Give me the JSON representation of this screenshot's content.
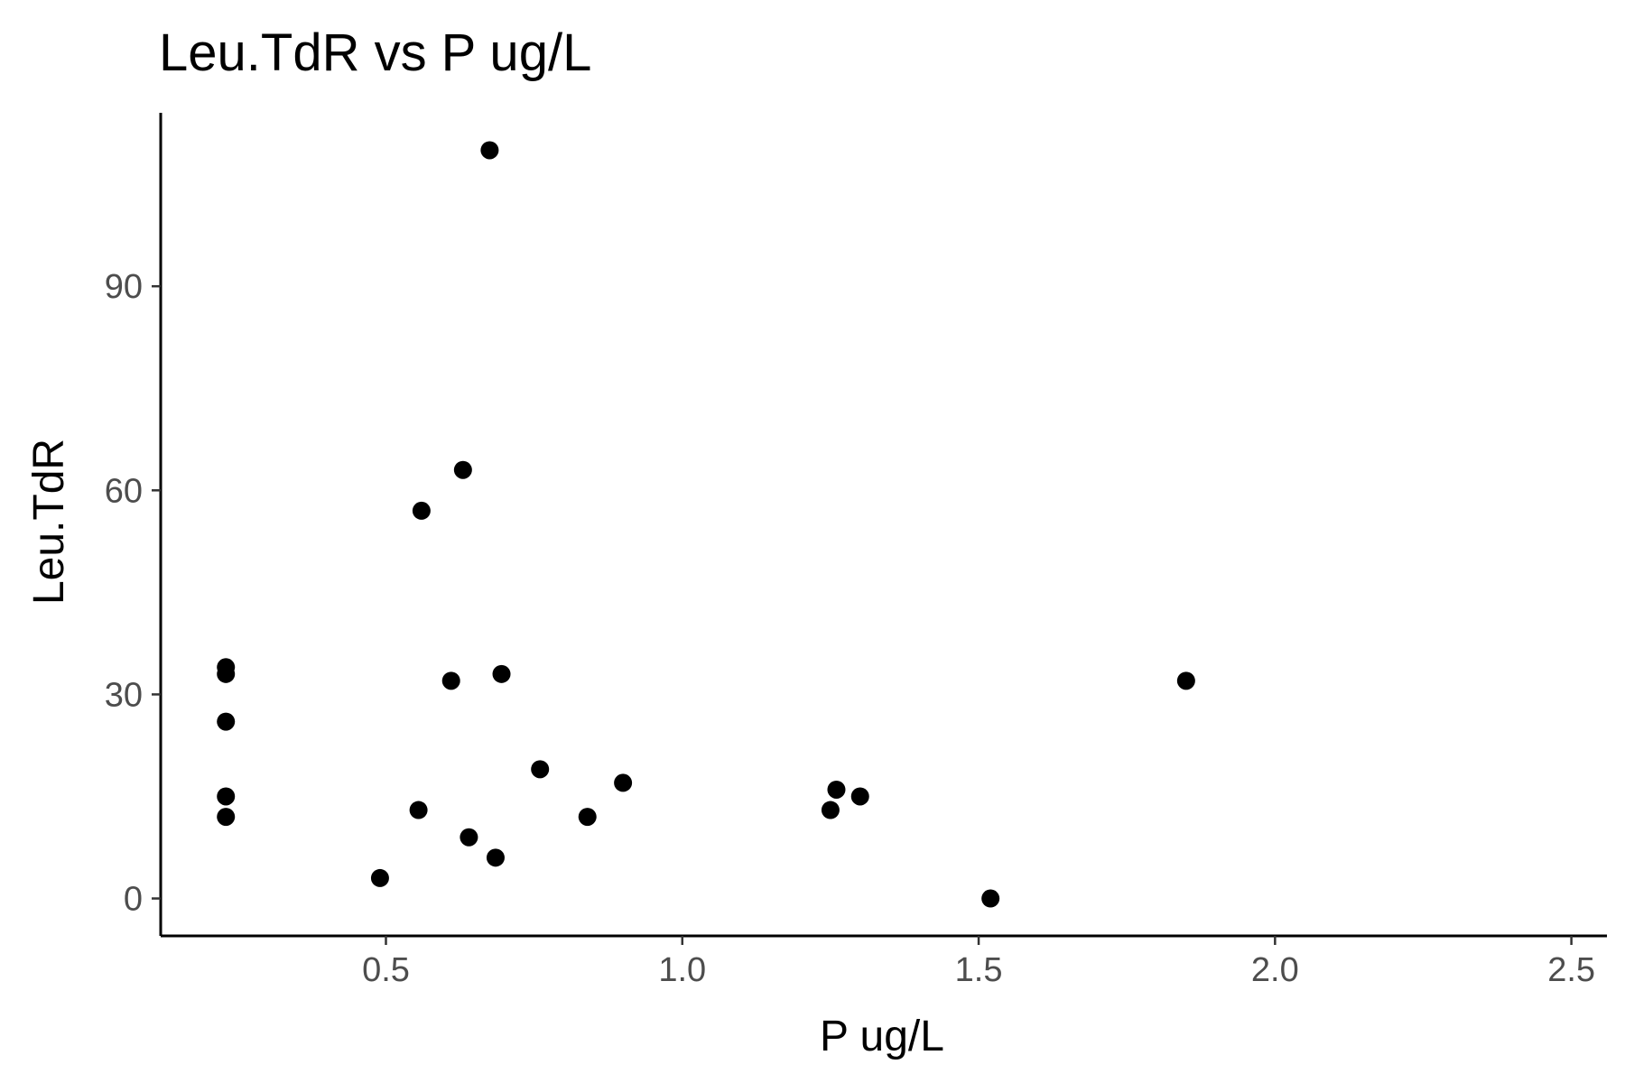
{
  "chart_data": {
    "type": "scatter",
    "title": "Leu.TdR vs P ug/L",
    "xlabel": "P ug/L",
    "ylabel": "Leu.TdR",
    "xlim": [
      0.12,
      2.56
    ],
    "ylim": [
      -5.5,
      115.5
    ],
    "x_ticks": [
      0.5,
      1.0,
      1.5,
      2.0,
      2.5
    ],
    "x_tick_labels": [
      "0.5",
      "1.0",
      "1.5",
      "2.0",
      "2.5"
    ],
    "y_ticks": [
      0,
      30,
      60,
      90
    ],
    "y_tick_labels": [
      "0",
      "30",
      "60",
      "90"
    ],
    "grid": false,
    "legend": "none",
    "point_color": "#000000",
    "points": [
      {
        "x": 0.23,
        "y": 34
      },
      {
        "x": 0.23,
        "y": 33
      },
      {
        "x": 0.23,
        "y": 26
      },
      {
        "x": 0.23,
        "y": 15
      },
      {
        "x": 0.23,
        "y": 12
      },
      {
        "x": 0.49,
        "y": 3
      },
      {
        "x": 0.555,
        "y": 13
      },
      {
        "x": 0.56,
        "y": 57
      },
      {
        "x": 0.61,
        "y": 32
      },
      {
        "x": 0.63,
        "y": 63
      },
      {
        "x": 0.64,
        "y": 9
      },
      {
        "x": 0.675,
        "y": 110
      },
      {
        "x": 0.685,
        "y": 6
      },
      {
        "x": 0.695,
        "y": 33
      },
      {
        "x": 0.76,
        "y": 19
      },
      {
        "x": 0.84,
        "y": 12
      },
      {
        "x": 0.9,
        "y": 17
      },
      {
        "x": 1.25,
        "y": 13
      },
      {
        "x": 1.26,
        "y": 16
      },
      {
        "x": 1.3,
        "y": 15
      },
      {
        "x": 1.52,
        "y": 0
      },
      {
        "x": 1.85,
        "y": 32
      }
    ]
  }
}
